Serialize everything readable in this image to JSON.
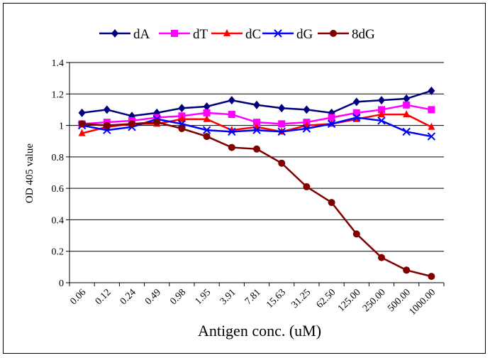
{
  "chart_data": {
    "type": "line",
    "title": "",
    "xlabel": "Antigen conc. (uM)",
    "ylabel": "OD 405 value",
    "categories": [
      "0.06",
      "0.12",
      "0.24",
      "0.49",
      "0.98",
      "1.95",
      "3.91",
      "7.81",
      "15.63",
      "31.25",
      "62.50",
      "125.00",
      "250.00",
      "500.00",
      "1000.00"
    ],
    "yticks": [
      "0",
      "0.2",
      "0.4",
      "0.6",
      "0.8",
      "1",
      "1.2",
      "1.4"
    ],
    "ylim": [
      0,
      1.4
    ],
    "grid": "horizontal",
    "legend_position": "top",
    "series": [
      {
        "name": "dA",
        "color": "#00007f",
        "marker": "diamond",
        "values": [
          1.08,
          1.1,
          1.06,
          1.08,
          1.11,
          1.12,
          1.16,
          1.13,
          1.11,
          1.1,
          1.08,
          1.15,
          1.16,
          1.17,
          1.22
        ]
      },
      {
        "name": "dT",
        "color": "#ff00ff",
        "marker": "square",
        "values": [
          1.01,
          1.02,
          1.03,
          1.05,
          1.06,
          1.08,
          1.07,
          1.02,
          1.01,
          1.02,
          1.05,
          1.08,
          1.1,
          1.13,
          1.1
        ]
      },
      {
        "name": "dC",
        "color": "#ff0000",
        "marker": "triangle",
        "values": [
          0.95,
          0.99,
          1.01,
          1.01,
          1.04,
          1.04,
          0.97,
          0.99,
          0.96,
          1.0,
          1.01,
          1.04,
          1.07,
          1.07,
          0.99
        ]
      },
      {
        "name": "dG",
        "color": "#0000ff",
        "marker": "x",
        "values": [
          1.0,
          0.97,
          0.99,
          1.04,
          1.01,
          0.97,
          0.96,
          0.97,
          0.96,
          0.98,
          1.01,
          1.05,
          1.03,
          0.96,
          0.93
        ]
      },
      {
        "name": "8dG",
        "color": "#800000",
        "marker": "circle",
        "values": [
          1.01,
          1.0,
          1.01,
          1.02,
          0.98,
          0.93,
          0.86,
          0.85,
          0.76,
          0.61,
          0.51,
          0.31,
          0.16,
          0.08,
          0.04
        ]
      }
    ]
  }
}
